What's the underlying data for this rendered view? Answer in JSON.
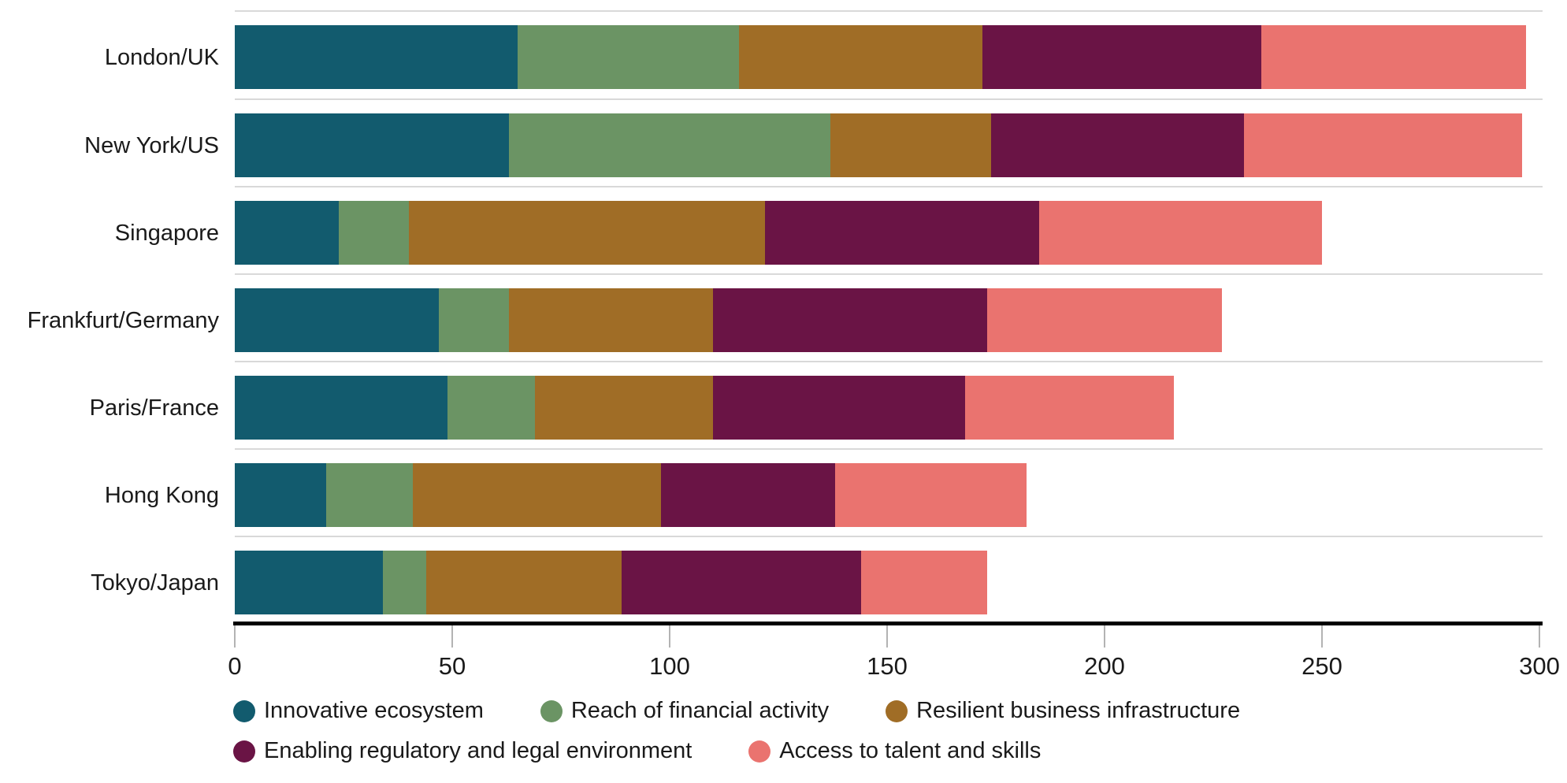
{
  "chart_data": {
    "type": "bar",
    "orientation": "horizontal",
    "stacked": true,
    "title": "",
    "xlabel": "",
    "ylabel": "",
    "xlim": [
      0,
      300
    ],
    "x_ticks": [
      0,
      50,
      100,
      150,
      200,
      250,
      300
    ],
    "grid": "light row separator lines above each bar",
    "legend_position": "bottom",
    "categories": [
      "London/UK",
      "New York/US",
      "Singapore",
      "Frankfurt/Germany",
      "Paris/France",
      "Hong Kong",
      "Tokyo/Japan"
    ],
    "series": [
      {
        "name": "Innovative ecosystem",
        "color": "#125B6E",
        "values": [
          65,
          63,
          24,
          47,
          49,
          21,
          34
        ]
      },
      {
        "name": "Reach of financial activity",
        "color": "#6B9464",
        "values": [
          51,
          74,
          16,
          16,
          20,
          20,
          10
        ]
      },
      {
        "name": "Resilient business infrastructure",
        "color": "#A06D26",
        "values": [
          56,
          37,
          82,
          47,
          41,
          57,
          45
        ]
      },
      {
        "name": "Enabling regulatory and legal environment",
        "color": "#6A1445",
        "values": [
          64,
          58,
          63,
          63,
          58,
          40,
          55
        ]
      },
      {
        "name": "Access to talent and skills",
        "color": "#EA736F",
        "values": [
          61,
          64,
          65,
          54,
          48,
          44,
          29
        ]
      }
    ],
    "totals": [
      297,
      296,
      250,
      227,
      216,
      182,
      173
    ]
  },
  "style": {
    "background": "#ffffff",
    "axis_color": "#000000",
    "tick_color": "#b3b3b3",
    "separator_color": "#d9d9d9",
    "text_color": "#1a1a1a"
  }
}
